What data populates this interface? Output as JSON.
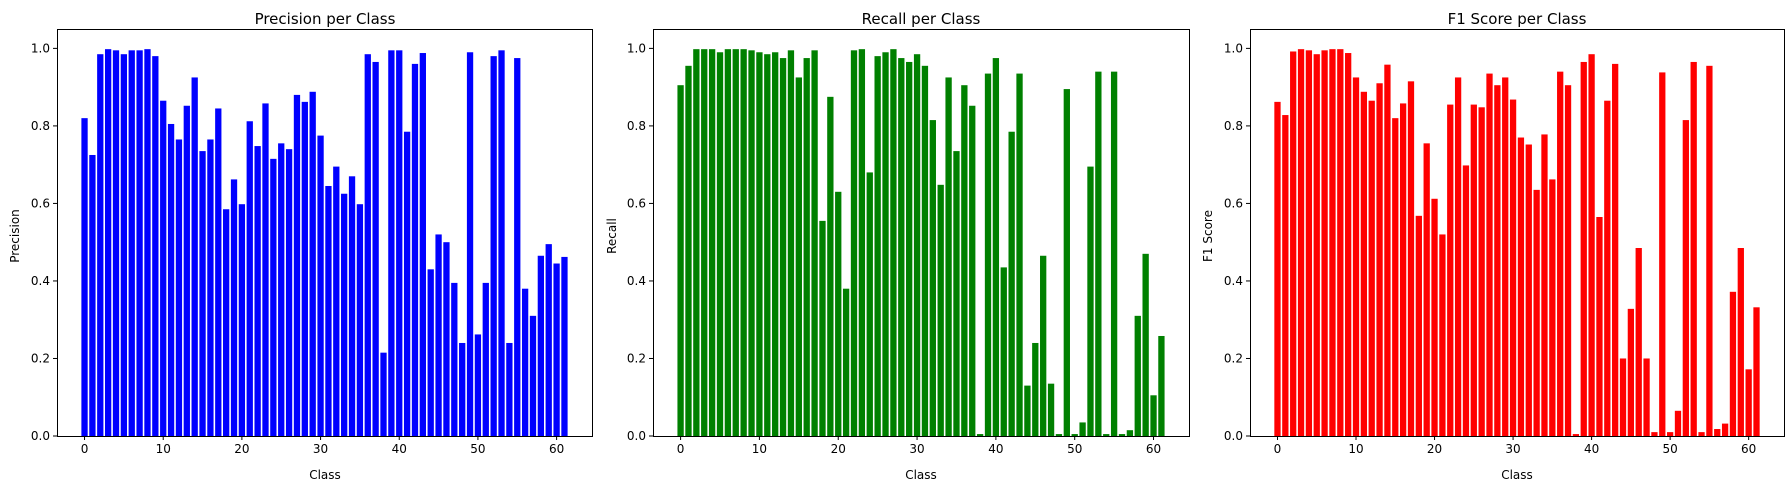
{
  "chart_data": [
    {
      "type": "bar",
      "title": "Precision per Class",
      "xlabel": "Class",
      "ylabel": "Precision",
      "color": "#0000ff",
      "xlim": [
        -3.5,
        64.5
      ],
      "ylim": [
        0,
        1.05
      ],
      "xticks": [
        0,
        10,
        20,
        30,
        40,
        50,
        60
      ],
      "xtick_labels": [
        "0",
        "10",
        "20",
        "30",
        "40",
        "50",
        "60"
      ],
      "yticks": [
        0.0,
        0.2,
        0.4,
        0.6,
        0.8,
        1.0
      ],
      "ytick_labels": [
        "0.0",
        "0.2",
        "0.4",
        "0.6",
        "0.8",
        "1.0"
      ],
      "values": [
        0.82,
        0.725,
        0.985,
        0.998,
        0.995,
        0.985,
        0.995,
        0.995,
        0.998,
        0.98,
        0.865,
        0.805,
        0.765,
        0.852,
        0.925,
        0.735,
        0.765,
        0.845,
        0.585,
        0.662,
        0.598,
        0.812,
        0.748,
        0.858,
        0.715,
        0.755,
        0.74,
        0.88,
        0.862,
        0.888,
        0.775,
        0.645,
        0.695,
        0.625,
        0.67,
        0.598,
        0.985,
        0.965,
        0.215,
        0.995,
        0.995,
        0.785,
        0.96,
        0.988,
        0.43,
        0.52,
        0.5,
        0.395,
        0.24,
        0.99,
        0.262,
        0.395,
        0.98,
        0.995,
        0.24,
        0.975,
        0.38,
        0.31,
        0.465,
        0.495,
        0.445,
        0.462
      ]
    },
    {
      "type": "bar",
      "title": "Recall per Class",
      "xlabel": "Class",
      "ylabel": "Recall",
      "color": "#008000",
      "xlim": [
        -3.5,
        64.5
      ],
      "ylim": [
        0,
        1.05
      ],
      "xticks": [
        0,
        10,
        20,
        30,
        40,
        50,
        60
      ],
      "xtick_labels": [
        "0",
        "10",
        "20",
        "30",
        "40",
        "50",
        "60"
      ],
      "yticks": [
        0.0,
        0.2,
        0.4,
        0.6,
        0.8,
        1.0
      ],
      "ytick_labels": [
        "0.0",
        "0.2",
        "0.4",
        "0.6",
        "0.8",
        "1.0"
      ],
      "values": [
        0.905,
        0.955,
        0.998,
        0.998,
        0.998,
        0.99,
        0.998,
        0.998,
        0.998,
        0.995,
        0.99,
        0.985,
        0.99,
        0.975,
        0.995,
        0.925,
        0.975,
        0.995,
        0.555,
        0.875,
        0.63,
        0.38,
        0.995,
        0.998,
        0.68,
        0.98,
        0.99,
        0.998,
        0.975,
        0.965,
        0.985,
        0.955,
        0.815,
        0.648,
        0.925,
        0.735,
        0.905,
        0.852,
        0.005,
        0.935,
        0.975,
        0.435,
        0.785,
        0.935,
        0.13,
        0.24,
        0.465,
        0.135,
        0.005,
        0.895,
        0.005,
        0.035,
        0.695,
        0.94,
        0.005,
        0.94,
        0.005,
        0.015,
        0.31,
        0.47,
        0.105,
        0.258
      ]
    },
    {
      "type": "bar",
      "title": "F1 Score per Class",
      "xlabel": "Class",
      "ylabel": "F1 Score",
      "color": "#ff0000",
      "xlim": [
        -3.5,
        64.5
      ],
      "ylim": [
        0,
        1.05
      ],
      "xticks": [
        0,
        10,
        20,
        30,
        40,
        50,
        60
      ],
      "xtick_labels": [
        "0",
        "10",
        "20",
        "30",
        "40",
        "50",
        "60"
      ],
      "yticks": [
        0.0,
        0.2,
        0.4,
        0.6,
        0.8,
        1.0
      ],
      "ytick_labels": [
        "0.0",
        "0.2",
        "0.4",
        "0.6",
        "0.8",
        "1.0"
      ],
      "values": [
        0.862,
        0.828,
        0.992,
        0.998,
        0.995,
        0.985,
        0.995,
        0.998,
        0.998,
        0.988,
        0.925,
        0.888,
        0.865,
        0.91,
        0.958,
        0.82,
        0.858,
        0.915,
        0.568,
        0.755,
        0.612,
        0.52,
        0.855,
        0.925,
        0.698,
        0.855,
        0.848,
        0.935,
        0.905,
        0.925,
        0.868,
        0.77,
        0.752,
        0.635,
        0.778,
        0.662,
        0.94,
        0.905,
        0.005,
        0.965,
        0.985,
        0.565,
        0.865,
        0.96,
        0.2,
        0.328,
        0.485,
        0.2,
        0.01,
        0.938,
        0.01,
        0.065,
        0.815,
        0.965,
        0.01,
        0.955,
        0.018,
        0.032,
        0.372,
        0.485,
        0.172,
        0.332
      ]
    }
  ]
}
